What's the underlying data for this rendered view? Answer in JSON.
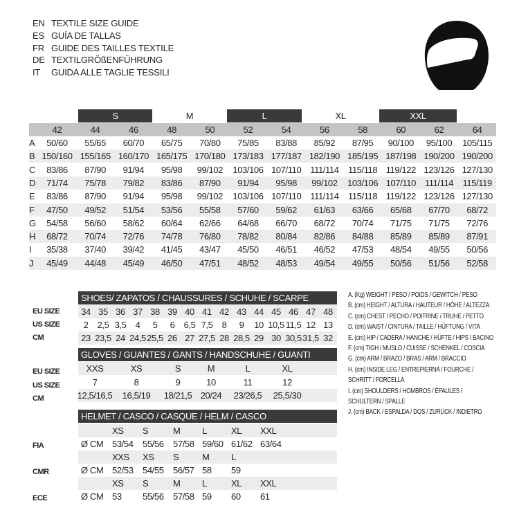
{
  "titles": [
    {
      "code": "EN",
      "text": "TEXTILE SIZE GUIDE"
    },
    {
      "code": "ES",
      "text": "GUÍA DE TALLAS"
    },
    {
      "code": "FR",
      "text": "GUIDE DES TAILLES TEXTILE"
    },
    {
      "code": "DE",
      "text": "TEXTILGRÖßENFÜHRUNG"
    },
    {
      "code": "IT",
      "text": "GUIDA ALLE TAGLIE TESSILI"
    }
  ],
  "icon": "helmet-icon",
  "textile": {
    "size_groups": [
      {
        "label": "S",
        "dark": true
      },
      {
        "label": "M",
        "dark": false
      },
      {
        "label": "L",
        "dark": true
      },
      {
        "label": "XL",
        "dark": false
      },
      {
        "label": "XXL",
        "dark": true
      }
    ],
    "columns": [
      "42",
      "44",
      "46",
      "48",
      "50",
      "52",
      "54",
      "56",
      "58",
      "60",
      "62",
      "64"
    ],
    "rows": [
      {
        "key": "A",
        "values": [
          "50/60",
          "55/65",
          "60/70",
          "65/75",
          "70/80",
          "75/85",
          "83/88",
          "85/92",
          "87/95",
          "90/100",
          "95/100",
          "105/115"
        ]
      },
      {
        "key": "B",
        "values": [
          "150/160",
          "155/165",
          "160/170",
          "165/175",
          "170/180",
          "173/183",
          "177/187",
          "182/190",
          "185/195",
          "187/198",
          "190/200",
          "190/200"
        ]
      },
      {
        "key": "C",
        "values": [
          "83/86",
          "87/90",
          "91/94",
          "95/98",
          "99/102",
          "103/106",
          "107/110",
          "111/114",
          "115/118",
          "119/122",
          "123/126",
          "127/130"
        ]
      },
      {
        "key": "D",
        "values": [
          "71/74",
          "75/78",
          "79/82",
          "83/86",
          "87/90",
          "91/94",
          "95/98",
          "99/102",
          "103/106",
          "107/110",
          "111/114",
          "115/119"
        ]
      },
      {
        "key": "E",
        "values": [
          "83/86",
          "87/90",
          "91/94",
          "95/98",
          "99/102",
          "103/106",
          "107/110",
          "111/114",
          "115/118",
          "119/122",
          "123/126",
          "127/130"
        ]
      },
      {
        "key": "F",
        "values": [
          "47/50",
          "49/52",
          "51/54",
          "53/56",
          "55/58",
          "57/60",
          "59/62",
          "61/63",
          "63/66",
          "65/68",
          "67/70",
          "68/72"
        ]
      },
      {
        "key": "G",
        "values": [
          "54/58",
          "56/60",
          "58/62",
          "60/64",
          "62/66",
          "64/68",
          "66/70",
          "68/72",
          "70/74",
          "71/75",
          "71/75",
          "72/76"
        ]
      },
      {
        "key": "H",
        "values": [
          "68/72",
          "70/74",
          "72/76",
          "74/78",
          "76/80",
          "78/82",
          "80/84",
          "82/86",
          "84/88",
          "85/89",
          "85/89",
          "87/91"
        ]
      },
      {
        "key": "I",
        "values": [
          "35/38",
          "37/40",
          "39/42",
          "41/45",
          "43/47",
          "45/50",
          "46/51",
          "46/52",
          "47/53",
          "48/54",
          "49/55",
          "50/56"
        ]
      },
      {
        "key": "J",
        "values": [
          "45/49",
          "44/48",
          "45/49",
          "46/50",
          "47/51",
          "48/52",
          "48/53",
          "49/54",
          "49/55",
          "50/56",
          "51/56",
          "52/58"
        ]
      }
    ]
  },
  "shoes": {
    "title": "SHOES/ ZAPATOS / CHAUSSURES / SCHUHE / SCARPE",
    "rows": [
      {
        "label": "EU SIZE",
        "values": [
          "34",
          "35",
          "36",
          "37",
          "38",
          "39",
          "40",
          "41",
          "42",
          "43",
          "44",
          "45",
          "46",
          "47",
          "48"
        ]
      },
      {
        "label": "US SIZE",
        "values": [
          "2",
          "2,5",
          "3,5",
          "4",
          "5",
          "6",
          "6,5",
          "7,5",
          "8",
          "9",
          "10",
          "10,5",
          "11,5",
          "12",
          "13"
        ]
      },
      {
        "label": "CM",
        "values": [
          "23",
          "23,5",
          "24",
          "24,5",
          "25,5",
          "26",
          "27",
          "27,5",
          "28",
          "28,5",
          "29",
          "30",
          "30,5",
          "31,5",
          "32"
        ]
      }
    ]
  },
  "gloves": {
    "title": "GLOVES / GUANTES / GANTS / HANDSCHUHE / GUANTI",
    "rows": [
      {
        "label": "EU SIZE",
        "values": [
          "XXS",
          "XS",
          "S",
          "M",
          "L",
          "XL"
        ]
      },
      {
        "label": "US SIZE",
        "values": [
          "7",
          "8",
          "9",
          "10",
          "11",
          "12"
        ]
      },
      {
        "label": "CM",
        "values": [
          "12,5/16,5",
          "16,5/19",
          "18/21,5",
          "20/24",
          "23/26,5",
          "25,5/30"
        ]
      }
    ]
  },
  "helmet": {
    "title": "HELMET / CASCO / CASQUE / HELM / CASCO",
    "standards": [
      {
        "label": "FIA",
        "unit": "Ø CM",
        "sizes": [
          "XS",
          "S",
          "M",
          "L",
          "XL",
          "XXL"
        ],
        "values": [
          "53/54",
          "55/56",
          "57/58",
          "59/60",
          "61/62",
          "63/64"
        ]
      },
      {
        "label": "CMR",
        "unit": "Ø CM",
        "sizes": [
          "XXS",
          "XS",
          "S",
          "M",
          "L"
        ],
        "values": [
          "52/53",
          "54/55",
          "56/57",
          "58",
          "59"
        ]
      },
      {
        "label": "ECE",
        "unit": "Ø CM",
        "sizes": [
          "XS",
          "S",
          "M",
          "L",
          "XL",
          "XXL"
        ],
        "values": [
          "53",
          "55/56",
          "57/58",
          "59",
          "60",
          "61"
        ]
      }
    ]
  },
  "legend": [
    "A. (Kg) WEIGHT / PESO / POIDS / GEWITCH / PESO",
    "B. (cm) HEIGHT / ALTURA / HAUTEUR / HÖHE / ALTEZZA",
    "C. (cm) CHEST / PECHO / POITRINE / TRUHE / PETTO",
    "D. (cm) WAIST / CINTURA / TAILLE / HÜFTUNG / VITA",
    "E. (cm) HIP / CADERA / HANCHE / HÜFTE / HIPS /  BACINO",
    "F.  (cm) TIGH / MUSLO / CUISSE / SCHENKEL / COSCIA",
    "G. (cm) ARM  / BRAZO / BRAS / ARM / BRACCIO",
    "H. (cm) INSIDE LEG / ENTREPIERNA / FOURCHE /",
    "SCHRITT / FORCELLA",
    "I.  (cm) SHOULDERS / HOMBROS / ÉPAULES /",
    "SCHULTERN / SPALLE",
    "J. (cm) BACK / ESPALDA / DOS / ZURÜCK / INDIETRO"
  ]
}
